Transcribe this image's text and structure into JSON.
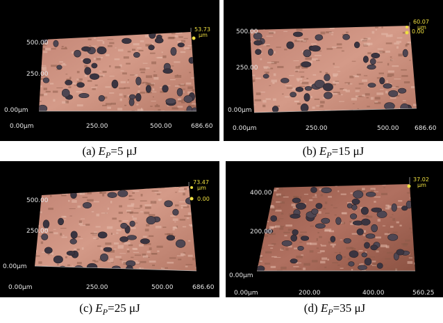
{
  "panels": [
    {
      "caption": {
        "label": "(a)",
        "symbol": "E",
        "subscript": "P",
        "value": "=5 μJ"
      },
      "zmax": "53.73",
      "zunit": "μm",
      "yticks": [
        "500.00",
        "250.00",
        "0.00μm"
      ],
      "xticks": [
        "0.00μm",
        "250.00",
        "500.00",
        "686.60"
      ]
    },
    {
      "caption": {
        "label": "(b)",
        "symbol": "E",
        "subscript": "P",
        "value": "=15 μJ"
      },
      "zmax": "60.07",
      "zunit": "μm",
      "zmin": "0.00",
      "yticks": [
        "500.00",
        "250.00",
        "0.00μm"
      ],
      "xticks": [
        "0.00μm",
        "250.00",
        "500.00",
        "686.60"
      ]
    },
    {
      "caption": {
        "label": "(c)",
        "symbol": "E",
        "subscript": "P",
        "value": "=25 μJ"
      },
      "zmax": "73.47",
      "zunit": "μm",
      "zmin": "0.00",
      "yticks": [
        "500.00",
        "250.00",
        "0.00μm"
      ],
      "xticks": [
        "0.00μm",
        "250.00",
        "500.00",
        "686.60"
      ]
    },
    {
      "caption": {
        "label": "(d)",
        "symbol": "E",
        "subscript": "P",
        "value": "=35 μJ"
      },
      "zmax": "37.02",
      "zunit": "μm",
      "yticks": [
        "400.00",
        "200.00",
        "0.00μm"
      ],
      "xticks": [
        "0.00μm",
        "200.00",
        "400.00",
        "560.25"
      ]
    }
  ]
}
